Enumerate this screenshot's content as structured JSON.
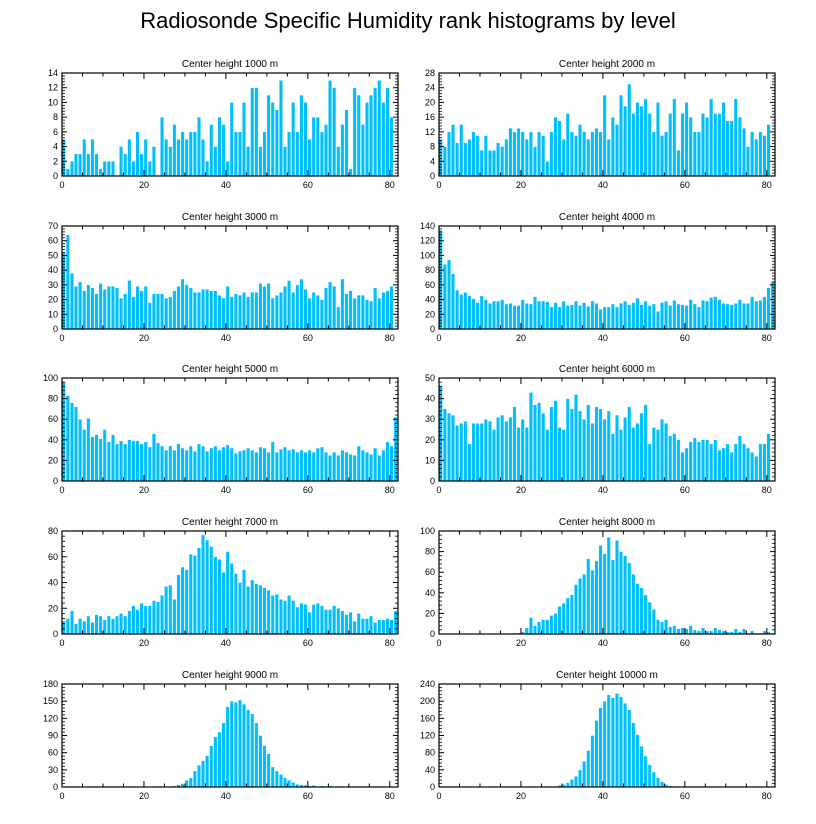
{
  "title": "Radiosonde Specific Humidity rank histograms by level",
  "style": {
    "bar_color": "#00bfff",
    "bar_edge": "#ffffff",
    "axis_color": "#000000"
  },
  "chart_data": [
    {
      "type": "bar",
      "title": "Center height 1000 m",
      "xlim": [
        0,
        82
      ],
      "ylim": [
        0,
        14
      ],
      "xticks": [
        0,
        20,
        40,
        60,
        80
      ],
      "yticks": [
        0,
        2,
        4,
        6,
        8,
        10,
        12,
        14
      ],
      "x_start": 0,
      "values": [
        5,
        1,
        2,
        3,
        3,
        5,
        3,
        5,
        3,
        1,
        2,
        2,
        2,
        0,
        4,
        3,
        5,
        2,
        6,
        3,
        5,
        2,
        4,
        0,
        8,
        5,
        4,
        7,
        5,
        6,
        5,
        6,
        6,
        8,
        5,
        2,
        7,
        4,
        8,
        7,
        2,
        10,
        6,
        6,
        10,
        4,
        12,
        12,
        4,
        6,
        11,
        10,
        9,
        13,
        4,
        6,
        10,
        6,
        11,
        10,
        5,
        8,
        8,
        6,
        7,
        13,
        12,
        4,
        7,
        9,
        1,
        12,
        11,
        7,
        10,
        11,
        12,
        13,
        10,
        12,
        8
      ],
      "xlabel": "",
      "ylabel": ""
    },
    {
      "type": "bar",
      "title": "Center height 2000 m",
      "xlim": [
        0,
        82
      ],
      "ylim": [
        0,
        28
      ],
      "xticks": [
        0,
        20,
        40,
        60,
        80
      ],
      "yticks": [
        0,
        4,
        8,
        12,
        16,
        20,
        24,
        28
      ],
      "x_start": 0,
      "values": [
        10,
        8,
        12,
        14,
        9,
        14,
        9,
        10,
        12,
        11,
        7,
        11,
        7,
        7,
        9,
        8,
        10,
        13,
        12,
        13,
        12,
        10,
        12,
        8,
        12,
        11,
        4,
        12,
        16,
        15,
        10,
        17,
        12,
        11,
        14,
        12,
        10,
        12,
        13,
        12,
        22,
        10,
        16,
        14,
        22,
        19,
        25,
        17,
        20,
        19,
        21,
        17,
        12,
        20,
        11,
        12,
        17,
        21,
        7,
        17,
        20,
        16,
        12,
        12,
        17,
        16,
        21,
        17,
        17,
        20,
        15,
        15,
        21,
        16,
        13,
        8,
        12,
        10,
        12,
        11,
        14
      ],
      "xlabel": "",
      "ylabel": ""
    },
    {
      "type": "bar",
      "title": "Center height 3000 m",
      "xlim": [
        0,
        82
      ],
      "ylim": [
        0,
        70
      ],
      "xticks": [
        0,
        20,
        40,
        60,
        80
      ],
      "yticks": [
        0,
        10,
        20,
        30,
        40,
        50,
        60,
        70
      ],
      "x_start": 0,
      "values": [
        52,
        64,
        38,
        29,
        32,
        26,
        30,
        28,
        24,
        31,
        27,
        29,
        29,
        28,
        21,
        24,
        33,
        22,
        29,
        26,
        29,
        18,
        24,
        24,
        24,
        21,
        22,
        26,
        29,
        34,
        30,
        28,
        25,
        25,
        27,
        27,
        26,
        26,
        23,
        21,
        29,
        22,
        24,
        23,
        25,
        22,
        25,
        25,
        31,
        29,
        31,
        21,
        23,
        25,
        29,
        33,
        25,
        30,
        34,
        27,
        21,
        25,
        23,
        20,
        28,
        32,
        29,
        15,
        34,
        24,
        26,
        21,
        23,
        23,
        20,
        19,
        28,
        21,
        25,
        26,
        29
      ],
      "xlabel": "",
      "ylabel": ""
    },
    {
      "type": "bar",
      "title": "Center height 4000 m",
      "xlim": [
        0,
        82
      ],
      "ylim": [
        0,
        140
      ],
      "xticks": [
        0,
        20,
        40,
        60,
        80
      ],
      "yticks": [
        0,
        20,
        40,
        60,
        80,
        100,
        120,
        140
      ],
      "x_start": 0,
      "values": [
        134,
        88,
        94,
        75,
        53,
        47,
        50,
        45,
        41,
        36,
        45,
        40,
        35,
        38,
        38,
        40,
        34,
        35,
        32,
        32,
        40,
        35,
        34,
        44,
        38,
        38,
        37,
        30,
        36,
        30,
        38,
        32,
        33,
        38,
        32,
        36,
        31,
        38,
        35,
        27,
        30,
        30,
        34,
        30,
        35,
        38,
        33,
        36,
        42,
        33,
        38,
        32,
        34,
        24,
        36,
        38,
        32,
        39,
        34,
        33,
        32,
        40,
        34,
        30,
        39,
        38,
        43,
        44,
        40,
        35,
        34,
        33,
        35,
        40,
        35,
        35,
        44,
        38,
        39,
        44,
        56,
        64
      ],
      "xlabel": "",
      "ylabel": ""
    },
    {
      "type": "bar",
      "title": "Center height 5000 m",
      "xlim": [
        0,
        82
      ],
      "ylim": [
        0,
        100
      ],
      "xticks": [
        0,
        20,
        40,
        60,
        80
      ],
      "yticks": [
        0,
        20,
        40,
        60,
        80,
        100
      ],
      "x_start": 0,
      "values": [
        96,
        83,
        76,
        72,
        60,
        50,
        61,
        43,
        45,
        41,
        50,
        38,
        45,
        36,
        39,
        36,
        40,
        39,
        39,
        36,
        38,
        33,
        46,
        37,
        34,
        30,
        34,
        30,
        36,
        32,
        30,
        34,
        29,
        36,
        34,
        29,
        32,
        34,
        30,
        33,
        35,
        32,
        27,
        29,
        30,
        32,
        30,
        28,
        33,
        32,
        28,
        38,
        28,
        31,
        33,
        30,
        31,
        28,
        30,
        28,
        30,
        28,
        32,
        33,
        28,
        25,
        28,
        25,
        30,
        28,
        26,
        25,
        34,
        30,
        28,
        26,
        32,
        25,
        30,
        38,
        34,
        62
      ],
      "xlabel": "",
      "ylabel": ""
    },
    {
      "type": "bar",
      "title": "Center height 6000 m",
      "xlim": [
        0,
        82
      ],
      "ylim": [
        0,
        50
      ],
      "xticks": [
        0,
        20,
        40,
        60,
        80
      ],
      "yticks": [
        0,
        10,
        20,
        30,
        40,
        50
      ],
      "x_start": 0,
      "values": [
        46,
        35,
        33,
        32,
        27,
        28,
        29,
        18,
        28,
        28,
        28,
        30,
        29,
        25,
        31,
        32,
        29,
        31,
        36,
        26,
        30,
        26,
        43,
        37,
        38,
        33,
        25,
        36,
        39,
        26,
        25,
        40,
        35,
        42,
        34,
        30,
        37,
        28,
        36,
        35,
        30,
        34,
        23,
        32,
        25,
        31,
        36,
        26,
        28,
        33,
        37,
        18,
        26,
        25,
        30,
        28,
        22,
        23,
        20,
        14,
        16,
        19,
        21,
        19,
        20,
        20,
        18,
        20,
        15,
        16,
        18,
        14,
        18,
        22,
        18,
        16,
        14,
        12,
        18,
        18,
        23
      ],
      "xlabel": "",
      "ylabel": ""
    },
    {
      "type": "bar",
      "title": "Center height 7000 m",
      "xlim": [
        0,
        82
      ],
      "ylim": [
        0,
        80
      ],
      "xticks": [
        0,
        20,
        40,
        60,
        80
      ],
      "yticks": [
        0,
        20,
        40,
        60,
        80
      ],
      "x_start": 0,
      "values": [
        10,
        12,
        18,
        8,
        12,
        10,
        14,
        9,
        15,
        14,
        11,
        14,
        12,
        14,
        16,
        14,
        18,
        22,
        19,
        24,
        22,
        22,
        26,
        25,
        30,
        37,
        38,
        27,
        46,
        52,
        50,
        62,
        61,
        67,
        77,
        73,
        68,
        60,
        58,
        48,
        64,
        55,
        47,
        40,
        50,
        37,
        42,
        39,
        38,
        36,
        34,
        30,
        31,
        27,
        26,
        30,
        26,
        21,
        24,
        23,
        17,
        23,
        24,
        22,
        19,
        19,
        22,
        20,
        18,
        15,
        17,
        10,
        16,
        12,
        12,
        14,
        9,
        11,
        11,
        12,
        11,
        18
      ],
      "xlabel": "",
      "ylabel": ""
    },
    {
      "type": "bar",
      "title": "Center height 8000 m",
      "xlim": [
        0,
        82
      ],
      "ylim": [
        0,
        100
      ],
      "xticks": [
        0,
        20,
        40,
        60,
        80
      ],
      "yticks": [
        0,
        20,
        40,
        60,
        80,
        100
      ],
      "x_start": 0,
      "values": [
        0,
        0,
        0,
        0,
        0,
        0,
        0,
        0,
        0,
        0,
        0,
        0,
        0,
        0,
        0,
        0,
        0,
        0,
        1,
        1,
        2,
        6,
        16,
        8,
        12,
        14,
        14,
        18,
        20,
        27,
        30,
        35,
        38,
        48,
        54,
        58,
        73,
        62,
        71,
        86,
        78,
        94,
        72,
        91,
        80,
        76,
        69,
        58,
        49,
        45,
        38,
        31,
        24,
        14,
        12,
        14,
        7,
        8,
        5,
        6,
        5,
        8,
        4,
        3,
        6,
        3,
        3,
        6,
        4,
        3,
        2,
        2,
        5,
        2,
        5,
        1,
        3,
        1,
        1,
        3,
        2,
        1
      ],
      "xlabel": "",
      "ylabel": ""
    },
    {
      "type": "bar",
      "title": "Center height 9000 m",
      "xlim": [
        0,
        82
      ],
      "ylim": [
        0,
        180
      ],
      "xticks": [
        0,
        20,
        40,
        60,
        80
      ],
      "yticks": [
        0,
        30,
        60,
        90,
        120,
        150,
        180
      ],
      "x_start": 0,
      "values": [
        0,
        0,
        0,
        0,
        0,
        0,
        0,
        0,
        0,
        0,
        0,
        0,
        0,
        0,
        0,
        0,
        0,
        0,
        0,
        0,
        0,
        0,
        0,
        0,
        0,
        0,
        1,
        2,
        4,
        6,
        12,
        16,
        28,
        38,
        46,
        55,
        72,
        88,
        96,
        112,
        140,
        150,
        148,
        152,
        145,
        135,
        128,
        112,
        90,
        72,
        58,
        35,
        28,
        22,
        16,
        12,
        8,
        5,
        4,
        3,
        2,
        3,
        1,
        2,
        1,
        2,
        1,
        0,
        1,
        0,
        1,
        0,
        1,
        0,
        0,
        0,
        0,
        0,
        0,
        0,
        0,
        0
      ],
      "xlabel": "",
      "ylabel": ""
    },
    {
      "type": "bar",
      "title": "Center height 10000 m",
      "xlim": [
        0,
        82
      ],
      "ylim": [
        0,
        240
      ],
      "xticks": [
        0,
        20,
        40,
        60,
        80
      ],
      "yticks": [
        0,
        40,
        80,
        120,
        160,
        200,
        240
      ],
      "x_start": 0,
      "values": [
        0,
        0,
        0,
        0,
        0,
        0,
        0,
        0,
        0,
        0,
        0,
        0,
        0,
        0,
        0,
        0,
        0,
        0,
        0,
        0,
        0,
        0,
        0,
        0,
        0,
        0,
        1,
        1,
        2,
        4,
        6,
        10,
        18,
        25,
        40,
        60,
        85,
        120,
        155,
        185,
        200,
        215,
        208,
        218,
        210,
        195,
        180,
        150,
        122,
        95,
        72,
        52,
        35,
        22,
        12,
        6,
        3,
        2,
        1,
        1,
        0,
        0,
        0,
        0,
        0,
        0,
        0,
        0,
        0,
        0,
        0,
        0,
        0,
        0,
        0,
        0,
        0,
        0,
        0,
        0,
        0,
        0
      ],
      "xlabel": "",
      "ylabel": ""
    }
  ]
}
